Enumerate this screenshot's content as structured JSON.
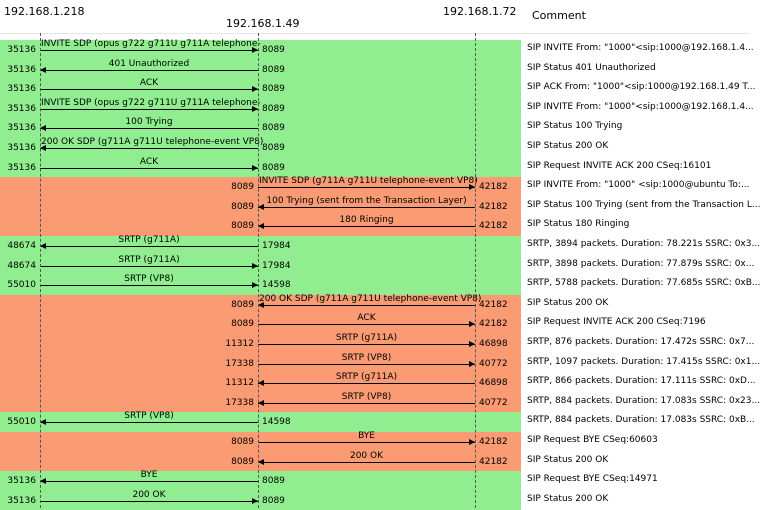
{
  "hosts": [
    {
      "name": "192.168.1.218"
    },
    {
      "name": "192.168.1.49"
    },
    {
      "name": "192.168.1.72"
    }
  ],
  "comment_header": "Comment",
  "colors": {
    "green": "#90ee90",
    "salmon": "#fa9b73"
  },
  "rows": [
    {
      "bg": "green",
      "from": 0,
      "to": 1,
      "dir": "right",
      "label": "INVITE SDP (opus g722 g711U g711A telephone-",
      "lport": "35136",
      "rport": "8089",
      "comment": "SIP INVITE From: \"1000\"<sip:1000@192.168.1.4..."
    },
    {
      "bg": "green",
      "from": 0,
      "to": 1,
      "dir": "left",
      "label": "401 Unauthorized",
      "lport": "35136",
      "rport": "8089",
      "comment": "SIP Status 401 Unauthorized"
    },
    {
      "bg": "green",
      "from": 0,
      "to": 1,
      "dir": "right",
      "label": "ACK",
      "lport": "35136",
      "rport": "8089",
      "comment": "SIP ACK From: \"1000\"<sip:1000@192.168.1.49 T..."
    },
    {
      "bg": "green",
      "from": 0,
      "to": 1,
      "dir": "right",
      "label": "INVITE SDP (opus g722 g711U g711A telephone-",
      "lport": "35136",
      "rport": "8089",
      "comment": "SIP INVITE From: \"1000\"<sip:1000@192.168.1.4..."
    },
    {
      "bg": "green",
      "from": 0,
      "to": 1,
      "dir": "left",
      "label": "100 Trying",
      "lport": "35136",
      "rport": "8089",
      "comment": "SIP Status 100 Trying"
    },
    {
      "bg": "green",
      "from": 0,
      "to": 1,
      "dir": "left",
      "label": "200 OK SDP (g711A g711U telephone-event VP8)",
      "lport": "35136",
      "rport": "8089",
      "comment": "SIP Status 200 OK"
    },
    {
      "bg": "green",
      "from": 0,
      "to": 1,
      "dir": "right",
      "label": "ACK",
      "lport": "35136",
      "rport": "8089",
      "comment": "SIP Request INVITE ACK 200 CSeq:16101"
    },
    {
      "bg": "salmon",
      "from": 1,
      "to": 2,
      "dir": "right",
      "label": "INVITE SDP (g711A g711U telephone-event VP8)",
      "lport": "8089",
      "rport": "42182",
      "comment": "SIP INVITE From: \"1000\" <sip:1000@ubuntu To:..."
    },
    {
      "bg": "salmon",
      "from": 1,
      "to": 2,
      "dir": "left",
      "label": "100 Trying (sent from the Transaction Layer)",
      "lport": "8089",
      "rport": "42182",
      "comment": "SIP Status 100 Trying (sent from the Transaction L..."
    },
    {
      "bg": "salmon",
      "from": 1,
      "to": 2,
      "dir": "left",
      "label": "180 Ringing",
      "lport": "8089",
      "rport": "42182",
      "comment": "SIP Status 180 Ringing"
    },
    {
      "bg": "green",
      "from": 0,
      "to": 1,
      "dir": "left",
      "label": "SRTP (g711A)",
      "lport": "48674",
      "rport": "17984",
      "comment": "SRTP, 3894 packets. Duration: 78.221s SSRC: 0x3..."
    },
    {
      "bg": "green",
      "from": 0,
      "to": 1,
      "dir": "right",
      "label": "SRTP (g711A)",
      "lport": "48674",
      "rport": "17984",
      "comment": "SRTP, 3898 packets. Duration: 77.879s SSRC: 0x..."
    },
    {
      "bg": "green",
      "from": 0,
      "to": 1,
      "dir": "right",
      "label": "SRTP (VP8)",
      "lport": "55010",
      "rport": "14598",
      "comment": "SRTP, 5788 packets. Duration: 77.685s SSRC: 0xB..."
    },
    {
      "bg": "salmon",
      "from": 1,
      "to": 2,
      "dir": "left",
      "label": "200 OK SDP (g711A g711U telephone-event VP8)",
      "lport": "8089",
      "rport": "42182",
      "comment": "SIP Status 200 OK"
    },
    {
      "bg": "salmon",
      "from": 1,
      "to": 2,
      "dir": "right",
      "label": "ACK",
      "lport": "8089",
      "rport": "42182",
      "comment": "SIP Request INVITE ACK 200 CSeq:7196"
    },
    {
      "bg": "salmon",
      "from": 1,
      "to": 2,
      "dir": "right",
      "label": "SRTP (g711A)",
      "lport": "11312",
      "rport": "46898",
      "comment": "SRTP, 876 packets. Duration: 17.472s SSRC: 0x7..."
    },
    {
      "bg": "salmon",
      "from": 1,
      "to": 2,
      "dir": "right",
      "label": "SRTP (VP8)",
      "lport": "17338",
      "rport": "40772",
      "comment": "SRTP, 1097 packets. Duration: 17.415s SSRC: 0x1..."
    },
    {
      "bg": "salmon",
      "from": 1,
      "to": 2,
      "dir": "left",
      "label": "SRTP (g711A)",
      "lport": "11312",
      "rport": "46898",
      "comment": "SRTP, 866 packets. Duration: 17.111s SSRC: 0xD..."
    },
    {
      "bg": "salmon",
      "from": 1,
      "to": 2,
      "dir": "left",
      "label": "SRTP (VP8)",
      "lport": "17338",
      "rport": "40772",
      "comment": "SRTP, 884 packets. Duration: 17.083s SSRC: 0x23..."
    },
    {
      "bg": "green",
      "from": 0,
      "to": 1,
      "dir": "left",
      "label": "SRTP (VP8)",
      "lport": "55010",
      "rport": "14598",
      "comment": "SRTP, 884 packets. Duration: 17.083s SSRC: 0xB..."
    },
    {
      "bg": "salmon",
      "from": 1,
      "to": 2,
      "dir": "right",
      "label": "BYE",
      "lport": "8089",
      "rport": "42182",
      "comment": "SIP Request BYE CSeq:60603"
    },
    {
      "bg": "salmon",
      "from": 1,
      "to": 2,
      "dir": "left",
      "label": "200 OK",
      "lport": "8089",
      "rport": "42182",
      "comment": "SIP Status 200 OK"
    },
    {
      "bg": "green",
      "from": 0,
      "to": 1,
      "dir": "left",
      "label": "BYE",
      "lport": "35136",
      "rport": "8089",
      "comment": "SIP Request BYE CSeq:14971"
    },
    {
      "bg": "green",
      "from": 0,
      "to": 1,
      "dir": "right",
      "label": "200 OK",
      "lport": "35136",
      "rport": "8089",
      "comment": "SIP Status 200 OK"
    }
  ]
}
